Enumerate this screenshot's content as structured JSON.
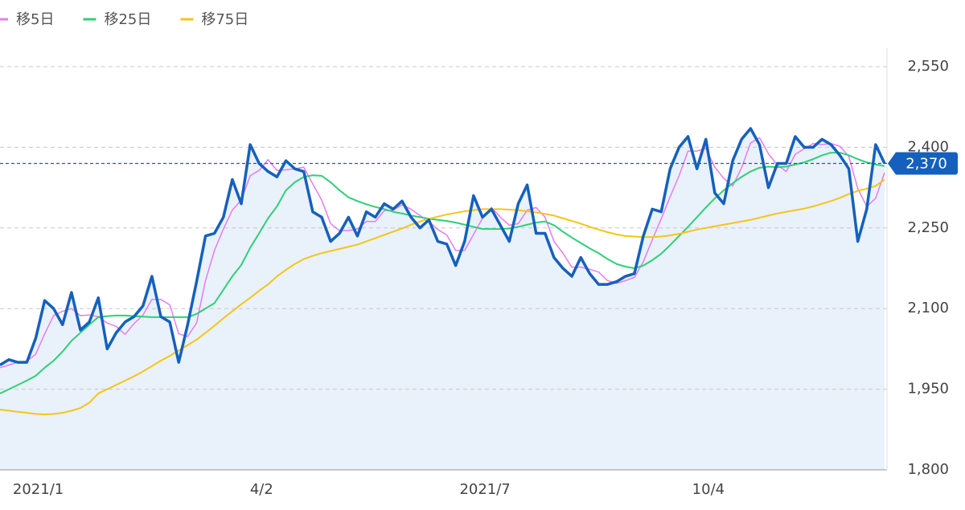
{
  "chart_data": {
    "type": "line",
    "categories": [
      null,
      null,
      null,
      null,
      null,
      "2021/1",
      null,
      null,
      null,
      null,
      null,
      null,
      null,
      null,
      null,
      null,
      null,
      null,
      null,
      null,
      null,
      null,
      null,
      null,
      null,
      null,
      null,
      null,
      null,
      null,
      "4/2",
      null,
      null,
      null,
      null,
      null,
      null,
      null,
      null,
      null,
      null,
      null,
      null,
      null,
      null,
      null,
      null,
      null,
      null,
      null,
      null,
      null,
      null,
      null,
      null,
      "2021/7",
      null,
      null,
      null,
      null,
      null,
      null,
      null,
      null,
      null,
      null,
      null,
      null,
      null,
      null,
      null,
      null,
      null,
      null,
      null,
      null,
      null,
      null,
      null,
      null,
      "10/4",
      null,
      null,
      null,
      null,
      null,
      null,
      null,
      null,
      null,
      null,
      null,
      null,
      null,
      null,
      null,
      null,
      null,
      null,
      null
    ],
    "series": [
      {
        "color": "#1560bd",
        "area_color": "#e9f1fa",
        "values": [
          1995,
          2005,
          2000,
          2000,
          2045,
          2115,
          2100,
          2070,
          2130,
          2060,
          2075,
          2120,
          2025,
          2055,
          2075,
          2085,
          2105,
          2160,
          2085,
          2075,
          2000,
          2070,
          2150,
          2235,
          2240,
          2270,
          2340,
          2295,
          2405,
          2370,
          2355,
          2345,
          2375,
          2360,
          2355,
          2280,
          2270,
          2225,
          2240,
          2270,
          2235,
          2280,
          2270,
          2295,
          2285,
          2300,
          2270,
          2250,
          2265,
          2225,
          2220,
          2180,
          2225,
          2310,
          2270,
          2285,
          2255,
          2225,
          2295,
          2330,
          2240,
          2240,
          2195,
          2175,
          2160,
          2195,
          2165,
          2145,
          2145,
          2150,
          2160,
          2165,
          2235,
          2285,
          2280,
          2360,
          2400,
          2420,
          2360,
          2415,
          2315,
          2295,
          2375,
          2415,
          2435,
          2405,
          2325,
          2370,
          2370,
          2420,
          2400,
          2400,
          2415,
          2405,
          2385,
          2360,
          2225,
          2285,
          2405,
          2370
        ]
      },
      {
        "name": "移5日",
        "color": "#e67cf0",
        "values": [
          1990,
          1995,
          2000,
          2002,
          2015,
          2053,
          2087,
          2095,
          2100,
          2087,
          2088,
          2085,
          2073,
          2067,
          2052,
          2072,
          2088,
          2117,
          2117,
          2107,
          2053,
          2048,
          2073,
          2152,
          2208,
          2248,
          2283,
          2302,
          2347,
          2357,
          2377,
          2357,
          2358,
          2360,
          2363,
          2332,
          2302,
          2258,
          2245,
          2245,
          2248,
          2262,
          2262,
          2282,
          2283,
          2293,
          2285,
          2273,
          2262,
          2247,
          2237,
          2208,
          2208,
          2238,
          2268,
          2288,
          2270,
          2255,
          2258,
          2283,
          2288,
          2270,
          2225,
          2203,
          2177,
          2177,
          2173,
          2168,
          2152,
          2147,
          2152,
          2158,
          2187,
          2228,
          2267,
          2308,
          2347,
          2393,
          2393,
          2398,
          2363,
          2342,
          2328,
          2362,
          2408,
          2418,
          2388,
          2367,
          2355,
          2387,
          2397,
          2407,
          2405,
          2407,
          2402,
          2383,
          2323,
          2290,
          2305,
          2353
        ]
      },
      {
        "name": "移25日",
        "color": "#2fcf78",
        "values": [
          1942,
          1950,
          1958,
          1966,
          1975,
          1990,
          2003,
          2020,
          2040,
          2055,
          2070,
          2084,
          2086,
          2087,
          2087,
          2086,
          2085,
          2084,
          2084,
          2084,
          2084,
          2084,
          2090,
          2100,
          2110,
          2135,
          2160,
          2181,
          2213,
          2240,
          2268,
          2290,
          2320,
          2335,
          2345,
          2348,
          2347,
          2335,
          2320,
          2307,
          2300,
          2294,
          2289,
          2285,
          2280,
          2277,
          2273,
          2270,
          2267,
          2265,
          2263,
          2260,
          2256,
          2252,
          2248,
          2248,
          2248,
          2249,
          2252,
          2256,
          2260,
          2262,
          2255,
          2243,
          2232,
          2222,
          2212,
          2203,
          2192,
          2183,
          2178,
          2175,
          2180,
          2190,
          2202,
          2218,
          2235,
          2252,
          2270,
          2288,
          2305,
          2320,
          2333,
          2345,
          2355,
          2362,
          2364,
          2363,
          2364,
          2368,
          2372,
          2378,
          2385,
          2390,
          2390,
          2385,
          2378,
          2372,
          2368,
          2365
        ]
      },
      {
        "name": "移75日",
        "color": "#f5c518",
        "values": [
          1912,
          1910,
          1908,
          1906,
          1904,
          1903,
          1904,
          1906,
          1910,
          1915,
          1925,
          1942,
          1950,
          1958,
          1966,
          1974,
          1983,
          1993,
          2003,
          2012,
          2022,
          2032,
          2042,
          2055,
          2068,
          2082,
          2095,
          2108,
          2120,
          2133,
          2145,
          2160,
          2172,
          2183,
          2192,
          2198,
          2203,
          2207,
          2211,
          2215,
          2219,
          2225,
          2231,
          2237,
          2243,
          2249,
          2256,
          2262,
          2267,
          2271,
          2275,
          2278,
          2281,
          2283,
          2285,
          2285,
          2285,
          2284,
          2283,
          2281,
          2279,
          2276,
          2273,
          2268,
          2263,
          2258,
          2252,
          2247,
          2242,
          2238,
          2235,
          2234,
          2233,
          2233,
          2234,
          2236,
          2239,
          2243,
          2247,
          2250,
          2253,
          2256,
          2259,
          2262,
          2265,
          2269,
          2273,
          2277,
          2280,
          2283,
          2286,
          2290,
          2295,
          2300,
          2306,
          2313,
          2319,
          2323,
          2328,
          2340
        ]
      }
    ],
    "current": {
      "value": 2370,
      "label": "2,370",
      "color": "#1560bd"
    },
    "ylim": [
      1800,
      2550
    ],
    "yticks": [
      {
        "value": 1800,
        "label": "1,800"
      },
      {
        "value": 1950,
        "label": "1,950"
      },
      {
        "value": 2100,
        "label": "2,100"
      },
      {
        "value": 2250,
        "label": "2,250"
      },
      {
        "value": 2400,
        "label": "2,400"
      },
      {
        "value": 2550,
        "label": "2,550"
      }
    ],
    "grid": true
  }
}
